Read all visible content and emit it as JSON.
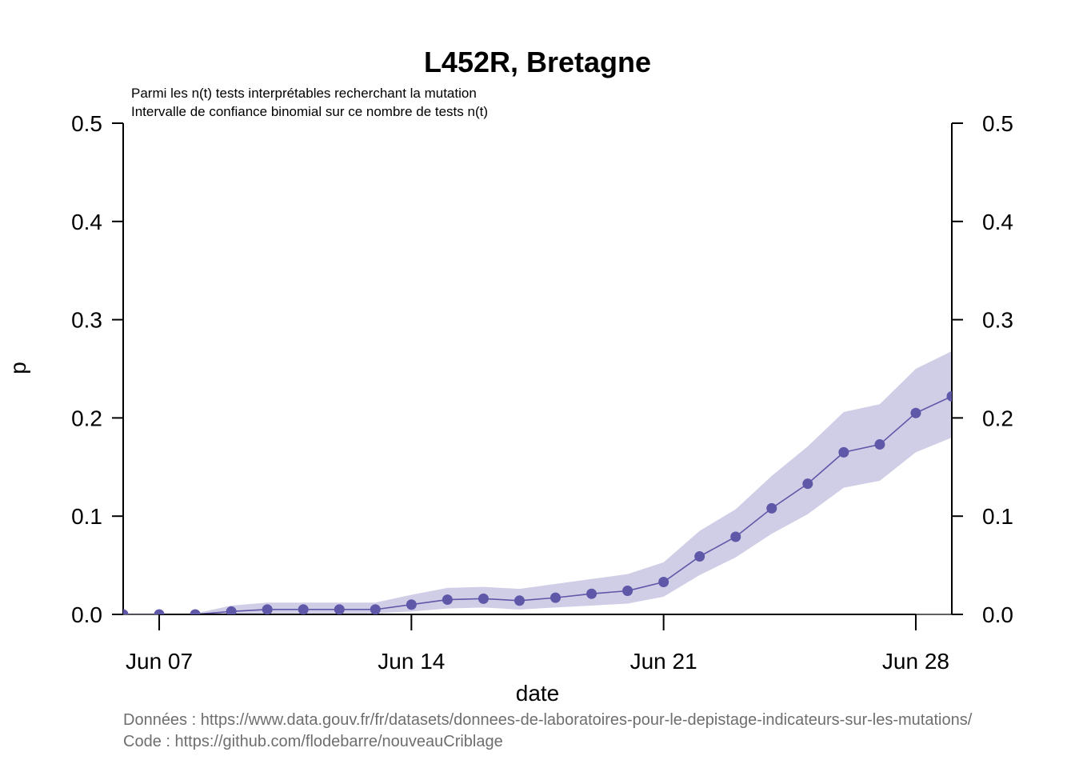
{
  "chart_data": {
    "type": "line",
    "title": "L452R, Bretagne",
    "subtitle": [
      "Parmi les n(t) tests interprétables recherchant la mutation",
      "Intervalle de confiance binomial sur ce nombre de tests n(t)"
    ],
    "xlabel": "date",
    "ylabel": "p",
    "xlim": [
      "2021-06-06",
      "2021-06-29"
    ],
    "ylim": [
      0,
      0.5
    ],
    "y_ticks": [
      0.0,
      0.1,
      0.2,
      0.3,
      0.4,
      0.5
    ],
    "y_tick_labels": [
      "0.0",
      "0.1",
      "0.2",
      "0.3",
      "0.4",
      "0.5"
    ],
    "x_ticks": [
      "2021-06-07",
      "2021-06-14",
      "2021-06-21",
      "2021-06-28"
    ],
    "x_tick_labels": [
      "Jun 07",
      "Jun 14",
      "Jun 21",
      "Jun 28"
    ],
    "grid": false,
    "right_axis": true,
    "colors": {
      "series": "#5f57a8",
      "band": "#d0cee6"
    },
    "series": [
      {
        "x": [
          "2021-06-06",
          "2021-06-07",
          "2021-06-08",
          "2021-06-09",
          "2021-06-10",
          "2021-06-11",
          "2021-06-12",
          "2021-06-13",
          "2021-06-14",
          "2021-06-15",
          "2021-06-16",
          "2021-06-17",
          "2021-06-18",
          "2021-06-19",
          "2021-06-20",
          "2021-06-21",
          "2021-06-22",
          "2021-06-23",
          "2021-06-24",
          "2021-06-25",
          "2021-06-26",
          "2021-06-27",
          "2021-06-28",
          "2021-06-29"
        ],
        "values": [
          0.0,
          0.0,
          0.0,
          0.003,
          0.005,
          0.005,
          0.005,
          0.005,
          0.01,
          0.015,
          0.016,
          0.014,
          0.017,
          0.021,
          0.024,
          0.033,
          0.059,
          0.079,
          0.108,
          0.133,
          0.165,
          0.173,
          0.205,
          0.222
        ],
        "lower": [
          0.0,
          0.0,
          0.0,
          0.0005,
          0.001,
          0.001,
          0.001,
          0.001,
          0.003,
          0.006,
          0.007,
          0.005,
          0.007,
          0.009,
          0.011,
          0.018,
          0.04,
          0.058,
          0.082,
          0.102,
          0.129,
          0.136,
          0.165,
          0.18
        ],
        "upper": [
          0.0,
          0.0,
          0.001,
          0.009,
          0.012,
          0.012,
          0.012,
          0.012,
          0.02,
          0.027,
          0.028,
          0.026,
          0.031,
          0.036,
          0.041,
          0.053,
          0.085,
          0.107,
          0.141,
          0.171,
          0.206,
          0.214,
          0.25,
          0.268
        ]
      }
    ]
  },
  "credits": {
    "data": "Données : https://www.data.gouv.fr/fr/datasets/donnees-de-laboratoires-pour-le-depistage-indicateurs-sur-les-mutations/",
    "code": "Code : https://github.com/flodebarre/nouveauCriblage"
  }
}
